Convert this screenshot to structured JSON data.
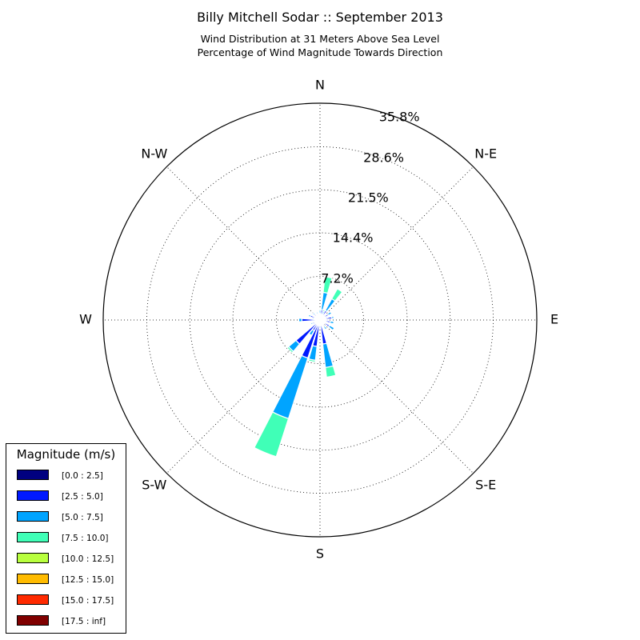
{
  "chart_data": {
    "type": "windrose",
    "title": "Billy Mitchell Sodar :: September 2013",
    "subtitle_line1": "Wind Distribution at 31 Meters Above Sea Level",
    "subtitle_line2": "Percentage of Wind Magnitude Towards Direction",
    "directions": [
      "N",
      "N-E",
      "E",
      "S-E",
      "S",
      "S-W",
      "W",
      "N-W"
    ],
    "radial_ticks": [
      "7.2%",
      "14.4%",
      "21.5%",
      "28.6%",
      "35.8%"
    ],
    "radial_tick_values": [
      7.2,
      14.4,
      21.5,
      28.6,
      35.8
    ],
    "radial_max": 35.8,
    "legend_title": "Magnitude (m/s)",
    "legend_placement": "lower-left",
    "grid": true,
    "bins": [
      {
        "label": "[0.0 : 2.5]",
        "color": "#000080"
      },
      {
        "label": "[2.5 : 5.0]",
        "color": "#0019ff"
      },
      {
        "label": "[5.0 : 7.5]",
        "color": "#00a4ff"
      },
      {
        "label": "[7.5 : 10.0]",
        "color": "#40ffb7"
      },
      {
        "label": "[10.0 : 12.5]",
        "color": "#b8ff3e"
      },
      {
        "label": "[12.5 : 15.0]",
        "color": "#ffbb00"
      },
      {
        "label": "[15.0 : 17.5]",
        "color": "#ff2a00"
      },
      {
        "label": "[17.5 : inf]",
        "color": "#800000"
      }
    ],
    "sectors": [
      {
        "direction_deg": 0,
        "values": [
          0.6,
          0.5,
          0.5,
          0.2,
          0,
          0,
          0,
          0
        ]
      },
      {
        "direction_deg": 11.25,
        "values": [
          0.5,
          1.2,
          2.9,
          2.6,
          0,
          0,
          0,
          0
        ]
      },
      {
        "direction_deg": 22.5,
        "values": [
          0.5,
          0.5,
          0.5,
          0.3,
          0,
          0,
          0,
          0
        ]
      },
      {
        "direction_deg": 33.75,
        "values": [
          0.5,
          1.3,
          2.2,
          1.9,
          0,
          0,
          0,
          0
        ]
      },
      {
        "direction_deg": 45,
        "values": [
          0.5,
          0.4,
          0.3,
          0.1,
          0,
          0,
          0,
          0
        ]
      },
      {
        "direction_deg": 56.25,
        "values": [
          0.6,
          1.0,
          0.6,
          0.1,
          0,
          0,
          0,
          0
        ]
      },
      {
        "direction_deg": 67.5,
        "values": [
          0.5,
          0.5,
          0.3,
          0,
          0,
          0,
          0,
          0
        ]
      },
      {
        "direction_deg": 78.75,
        "values": [
          0.6,
          1.4,
          0.3,
          0,
          0,
          0,
          0,
          0
        ]
      },
      {
        "direction_deg": 90,
        "values": [
          0.5,
          0.6,
          0.2,
          0,
          0,
          0,
          0,
          0
        ]
      },
      {
        "direction_deg": 101.25,
        "values": [
          0.6,
          1.1,
          0.6,
          0,
          0,
          0,
          0,
          0
        ]
      },
      {
        "direction_deg": 112.5,
        "values": [
          0.4,
          0.4,
          0.3,
          0,
          0,
          0,
          0,
          0
        ]
      },
      {
        "direction_deg": 123.75,
        "values": [
          0.6,
          1.2,
          0.9,
          0,
          0,
          0,
          0,
          0
        ]
      },
      {
        "direction_deg": 135,
        "values": [
          0.4,
          0.3,
          0.2,
          0,
          0,
          0,
          0,
          0
        ]
      },
      {
        "direction_deg": 146.25,
        "values": [
          0.5,
          0.7,
          0.6,
          0,
          0,
          0,
          0,
          0
        ]
      },
      {
        "direction_deg": 157.5,
        "values": [
          0.4,
          0.3,
          0.3,
          0,
          0,
          0,
          0,
          0
        ]
      },
      {
        "direction_deg": 168.75,
        "values": [
          0.6,
          3.4,
          3.9,
          1.6,
          0,
          0,
          0,
          0
        ]
      },
      {
        "direction_deg": 180,
        "values": [
          0.5,
          0.4,
          0.4,
          0.1,
          0,
          0,
          0,
          0
        ]
      },
      {
        "direction_deg": 191.25,
        "values": [
          0.6,
          3.8,
          2.3,
          0.3,
          0,
          0,
          0,
          0
        ]
      },
      {
        "direction_deg": 202.5,
        "values": [
          0.6,
          6.0,
          10.5,
          6.6,
          0,
          0,
          0,
          0
        ]
      },
      {
        "direction_deg": 213.75,
        "values": [
          0.6,
          1.4,
          0.9,
          0.1,
          0,
          0,
          0,
          0
        ]
      },
      {
        "direction_deg": 225,
        "values": [
          0.6,
          4.6,
          1.6,
          0.3,
          0,
          0,
          0,
          0
        ]
      },
      {
        "direction_deg": 236.25,
        "values": [
          0.5,
          0.5,
          0.3,
          0,
          0,
          0,
          0,
          0
        ]
      },
      {
        "direction_deg": 247.5,
        "values": [
          0.5,
          0.8,
          0.3,
          0,
          0,
          0,
          0,
          0
        ]
      },
      {
        "direction_deg": 258.75,
        "values": [
          0.5,
          0.5,
          0.2,
          0,
          0,
          0,
          0,
          0
        ]
      },
      {
        "direction_deg": 270,
        "values": [
          0.6,
          2.4,
          0.5,
          0,
          0,
          0,
          0,
          0
        ]
      },
      {
        "direction_deg": 281.25,
        "values": [
          0.5,
          0.5,
          0.3,
          0,
          0,
          0,
          0,
          0
        ]
      },
      {
        "direction_deg": 292.5,
        "values": [
          0.5,
          1.2,
          0.3,
          0,
          0,
          0,
          0,
          0
        ]
      },
      {
        "direction_deg": 303.75,
        "values": [
          0.4,
          0.4,
          0.2,
          0,
          0,
          0,
          0,
          0
        ]
      },
      {
        "direction_deg": 315,
        "values": [
          0.5,
          0.8,
          0.3,
          0,
          0,
          0,
          0,
          0
        ]
      },
      {
        "direction_deg": 326.25,
        "values": [
          0.4,
          0.4,
          0.2,
          0,
          0,
          0,
          0,
          0
        ]
      },
      {
        "direction_deg": 337.5,
        "values": [
          0.5,
          0.6,
          0.3,
          0,
          0,
          0,
          0,
          0
        ]
      },
      {
        "direction_deg": 348.75,
        "values": [
          0.4,
          0.4,
          0.2,
          0,
          0,
          0,
          0,
          0
        ]
      }
    ]
  }
}
